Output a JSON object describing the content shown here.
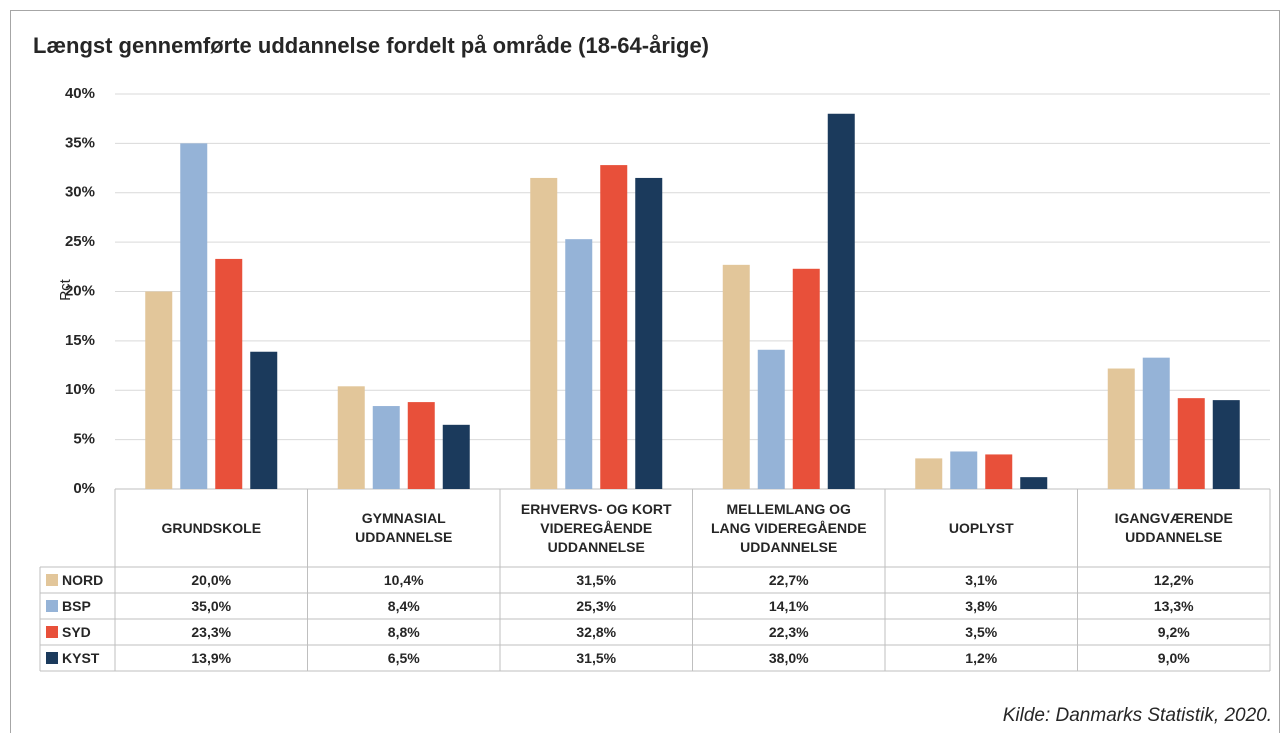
{
  "chart_data": {
    "type": "bar",
    "title": "Længst gennemførte uddannelse fordelt på område (18-64-årige)",
    "y_label": "Pct",
    "source": "Kilde: Danmarks Statistik, 2020.",
    "categories": [
      "GRUNDSKOLE",
      "GYMNASIAL\nUDDANNELSE",
      "ERHVERVS- OG KORT\nVIDEREGÅENDE\nUDDANNELSE",
      "MELLEMLANG OG\nLANG VIDEREGÅENDE\nUDDANNELSE",
      "UOPLYST",
      "IGANGVÆRENDE\nUDDANNELSE"
    ],
    "series": [
      {
        "name": "NORD",
        "color": "#e2c69a",
        "values": [
          20.0,
          10.4,
          31.5,
          22.7,
          3.1,
          12.2
        ],
        "value_labels": [
          "20,0%",
          "10,4%",
          "31,5%",
          "22,7%",
          "3,1%",
          "12,2%"
        ]
      },
      {
        "name": "BSP",
        "color": "#95b3d7",
        "values": [
          35.0,
          8.4,
          25.3,
          14.1,
          3.8,
          13.3
        ],
        "value_labels": [
          "35,0%",
          "8,4%",
          "25,3%",
          "14,1%",
          "3,8%",
          "13,3%"
        ]
      },
      {
        "name": "SYD",
        "color": "#e8503a",
        "values": [
          23.3,
          8.8,
          32.8,
          22.3,
          3.5,
          9.2
        ],
        "value_labels": [
          "23,3%",
          "8,8%",
          "32,8%",
          "22,3%",
          "3,5%",
          "9,2%"
        ]
      },
      {
        "name": "KYST",
        "color": "#1b3a5c",
        "values": [
          13.9,
          6.5,
          31.5,
          38.0,
          1.2,
          9.0
        ],
        "value_labels": [
          "13,9%",
          "6,5%",
          "31,5%",
          "38,0%",
          "1,2%",
          "9,0%"
        ]
      }
    ],
    "ylim": [
      0,
      40
    ],
    "yticks": [
      {
        "value": 0,
        "label": "0%"
      },
      {
        "value": 5,
        "label": "5%"
      },
      {
        "value": 10,
        "label": "10%"
      },
      {
        "value": 15,
        "label": "15%"
      },
      {
        "value": 20,
        "label": "20%"
      },
      {
        "value": 25,
        "label": "25%"
      },
      {
        "value": 30,
        "label": "30%"
      },
      {
        "value": 35,
        "label": "35%"
      },
      {
        "value": 40,
        "label": "40%"
      }
    ],
    "grid": true
  }
}
